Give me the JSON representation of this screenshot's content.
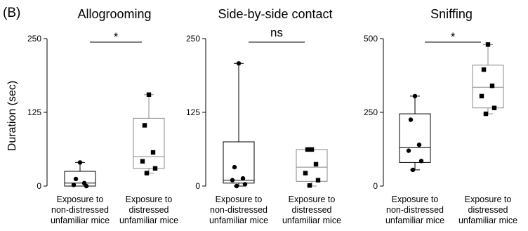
{
  "panel_label": "(B)",
  "ylabel": "Duration (sec)",
  "chart_data": [
    {
      "type": "box",
      "title": "Allogrooming",
      "ylim": [
        0,
        250
      ],
      "yticks": [
        "0",
        "125",
        "250"
      ],
      "ytick_values": [
        0,
        125,
        250
      ],
      "significance": "*",
      "categories": [
        "Exposure to\nnon-distressed\nunfamiliar mice",
        "Exposure to\ndistressed\nunfamiliar mice"
      ],
      "series": [
        {
          "marker": "circle",
          "whisker_low": 0,
          "q1": 0,
          "median": 5,
          "q3": 25,
          "whisker_high": 40,
          "points": [
            40,
            12,
            5,
            2,
            0
          ]
        },
        {
          "marker": "square",
          "whisker_low": 22,
          "q1": 30,
          "median": 50,
          "q3": 115,
          "whisker_high": 155,
          "points": [
            155,
            103,
            57,
            42,
            30,
            22
          ]
        }
      ]
    },
    {
      "type": "box",
      "title": "Side-by-side contact",
      "ylim": [
        0,
        250
      ],
      "yticks": [
        "0",
        "125",
        "250"
      ],
      "ytick_values": [
        0,
        125,
        250
      ],
      "significance": "ns",
      "categories": [
        "Exposure to\nnon-distressed\nunfamiliar mice",
        "Exposure to\ndistressed\nunfamiliar mice"
      ],
      "series": [
        {
          "marker": "circle",
          "whisker_low": 0,
          "q1": 5,
          "median": 10,
          "q3": 75,
          "whisker_high": 208,
          "points": [
            208,
            32,
            13,
            10,
            3,
            0
          ]
        },
        {
          "marker": "square",
          "whisker_low": 0,
          "q1": 8,
          "median": 32,
          "q3": 62,
          "whisker_high": 62,
          "points": [
            62,
            62,
            37,
            22,
            10,
            1
          ]
        }
      ]
    },
    {
      "type": "box",
      "title": "Sniffing",
      "ylim": [
        0,
        500
      ],
      "yticks": [
        "0",
        "250",
        "500"
      ],
      "ytick_values": [
        0,
        250,
        500
      ],
      "significance": "*",
      "categories": [
        "Exposure to\nnon-distressed\nunfamiliar mice",
        "Exposure to\ndistressed\nunfamiliar mice"
      ],
      "series": [
        {
          "marker": "circle",
          "whisker_low": 55,
          "q1": 80,
          "median": 130,
          "q3": 245,
          "whisker_high": 305,
          "points": [
            305,
            225,
            140,
            120,
            85,
            55
          ]
        },
        {
          "marker": "square",
          "whisker_low": 245,
          "q1": 265,
          "median": 335,
          "q3": 410,
          "whisker_high": 480,
          "points": [
            480,
            395,
            340,
            305,
            265,
            245
          ]
        }
      ]
    }
  ]
}
